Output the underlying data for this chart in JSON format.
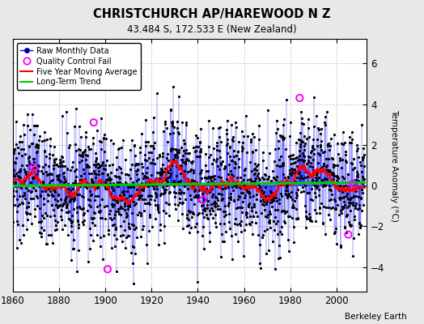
{
  "title": "CHRISTCHURCH AP/HAREWOOD N Z",
  "subtitle": "43.484 S, 172.533 E (New Zealand)",
  "ylabel": "Temperature Anomaly (°C)",
  "attribution": "Berkeley Earth",
  "year_start": 1860,
  "year_end": 2012,
  "ylim": [
    -5.2,
    7.2
  ],
  "yticks": [
    -4,
    -2,
    0,
    2,
    4,
    6
  ],
  "xticks": [
    1860,
    1880,
    1900,
    1920,
    1940,
    1960,
    1980,
    2000
  ],
  "raw_color": "#0000ff",
  "marker_color": "#000000",
  "qc_fail_color": "#ff00ff",
  "moving_avg_color": "#ff0000",
  "trend_color": "#00cc00",
  "background_color": "#e8e8e8",
  "plot_bg_color": "#ffffff",
  "seed": 37,
  "noise_std": 1.45,
  "qc_fail_years": [
    1869,
    1895,
    1901,
    1942,
    1984,
    2005,
    2007
  ],
  "qc_fail_vals": [
    0.9,
    3.1,
    -4.1,
    -0.7,
    4.3,
    -2.4,
    0.1
  ]
}
